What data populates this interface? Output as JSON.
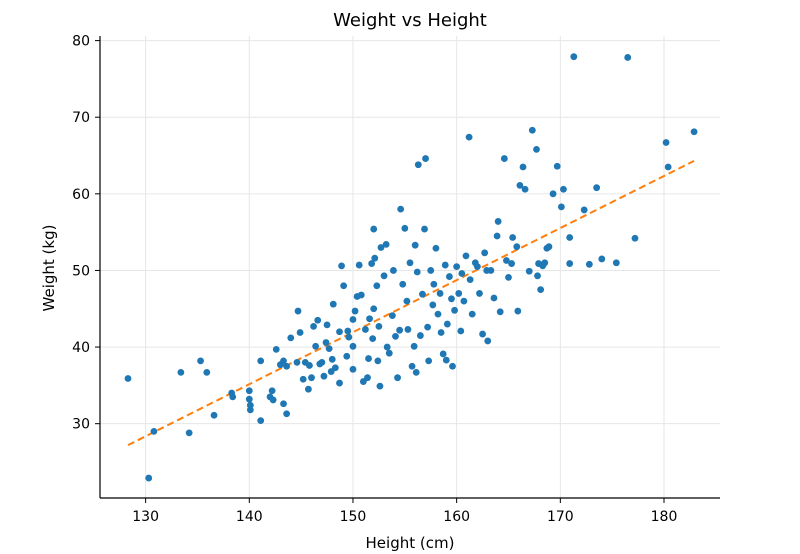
{
  "chart_data": {
    "type": "scatter",
    "title": "Weight vs Height",
    "xlabel": "Height (cm)",
    "ylabel": "Weight (kg)",
    "xlim": [
      125.6,
      185.4
    ],
    "ylim": [
      20.3,
      80.6
    ],
    "xticks": [
      130,
      140,
      150,
      160,
      170,
      180
    ],
    "yticks": [
      30,
      40,
      50,
      60,
      70,
      80
    ],
    "grid": true,
    "colors": {
      "points": "#1f77b4",
      "trend": "#ff7f0e"
    },
    "trend_line": {
      "x": [
        128.3,
        182.9
      ],
      "y": [
        27.2,
        64.3
      ],
      "style": "dashed"
    },
    "series": [
      {
        "points": [
          [
            128.3,
            35.9
          ],
          [
            130.3,
            22.9
          ],
          [
            130.8,
            29.0
          ],
          [
            133.4,
            36.7
          ],
          [
            134.2,
            28.8
          ],
          [
            135.3,
            38.2
          ],
          [
            135.9,
            36.7
          ],
          [
            136.6,
            31.1
          ],
          [
            138.3,
            34.0
          ],
          [
            138.4,
            33.5
          ],
          [
            140.0,
            34.3
          ],
          [
            140.0,
            33.2
          ],
          [
            140.1,
            32.4
          ],
          [
            140.1,
            31.8
          ],
          [
            141.1,
            30.4
          ],
          [
            141.1,
            38.2
          ],
          [
            142.0,
            33.5
          ],
          [
            142.2,
            34.3
          ],
          [
            142.3,
            33.1
          ],
          [
            142.6,
            39.7
          ],
          [
            143.0,
            37.7
          ],
          [
            143.3,
            38.2
          ],
          [
            143.3,
            32.6
          ],
          [
            143.6,
            31.3
          ],
          [
            143.6,
            37.5
          ],
          [
            144.0,
            41.2
          ],
          [
            144.6,
            38.0
          ],
          [
            144.7,
            44.7
          ],
          [
            144.9,
            41.9
          ],
          [
            145.4,
            38.0
          ],
          [
            145.7,
            34.5
          ],
          [
            145.8,
            37.6
          ],
          [
            146.0,
            36.0
          ],
          [
            146.2,
            42.7
          ],
          [
            146.4,
            40.1
          ],
          [
            146.6,
            43.5
          ],
          [
            146.8,
            37.8
          ],
          [
            147.0,
            38.0
          ],
          [
            147.2,
            36.2
          ],
          [
            147.4,
            40.6
          ],
          [
            147.5,
            42.9
          ],
          [
            147.9,
            36.8
          ],
          [
            148.0,
            38.4
          ],
          [
            148.1,
            45.6
          ],
          [
            148.3,
            37.3
          ],
          [
            148.7,
            35.3
          ],
          [
            148.7,
            42.0
          ],
          [
            148.9,
            50.6
          ],
          [
            149.1,
            48.0
          ],
          [
            149.4,
            38.8
          ],
          [
            149.5,
            42.1
          ],
          [
            149.6,
            41.3
          ],
          [
            150.0,
            37.1
          ],
          [
            150.0,
            40.1
          ],
          [
            150.0,
            43.6
          ],
          [
            150.2,
            44.7
          ],
          [
            150.4,
            46.6
          ],
          [
            150.6,
            50.7
          ],
          [
            150.8,
            46.8
          ],
          [
            151.0,
            35.5
          ],
          [
            151.2,
            42.3
          ],
          [
            151.4,
            36.0
          ],
          [
            151.5,
            38.5
          ],
          [
            151.6,
            43.7
          ],
          [
            151.8,
            50.9
          ],
          [
            151.9,
            41.1
          ],
          [
            152.0,
            45.0
          ],
          [
            152.1,
            51.6
          ],
          [
            152.3,
            48.0
          ],
          [
            152.4,
            38.2
          ],
          [
            152.5,
            42.7
          ],
          [
            152.6,
            34.9
          ],
          [
            152.7,
            53.0
          ],
          [
            153.0,
            49.3
          ],
          [
            153.2,
            53.4
          ],
          [
            153.3,
            40.0
          ],
          [
            153.5,
            39.2
          ],
          [
            153.8,
            44.1
          ],
          [
            153.9,
            50.0
          ],
          [
            154.1,
            41.4
          ],
          [
            154.3,
            36.0
          ],
          [
            154.5,
            42.2
          ],
          [
            154.6,
            58.0
          ],
          [
            154.8,
            48.2
          ],
          [
            155.0,
            55.5
          ],
          [
            155.2,
            46.0
          ],
          [
            155.3,
            42.3
          ],
          [
            155.5,
            51.0
          ],
          [
            155.7,
            37.5
          ],
          [
            155.9,
            40.1
          ],
          [
            156.0,
            53.3
          ],
          [
            156.2,
            49.8
          ],
          [
            156.3,
            63.8
          ],
          [
            156.5,
            41.5
          ],
          [
            156.7,
            46.9
          ],
          [
            156.9,
            55.4
          ],
          [
            157.0,
            64.6
          ],
          [
            157.2,
            42.6
          ],
          [
            157.3,
            38.2
          ],
          [
            157.5,
            50.0
          ],
          [
            157.7,
            45.5
          ],
          [
            157.8,
            48.2
          ],
          [
            158.0,
            52.9
          ],
          [
            158.2,
            44.3
          ],
          [
            158.4,
            47.0
          ],
          [
            158.5,
            41.9
          ],
          [
            158.7,
            39.1
          ],
          [
            158.9,
            50.7
          ],
          [
            159.1,
            43.0
          ],
          [
            159.3,
            49.2
          ],
          [
            159.5,
            46.3
          ],
          [
            159.6,
            37.5
          ],
          [
            159.8,
            44.8
          ],
          [
            160.0,
            50.5
          ],
          [
            160.2,
            47.0
          ],
          [
            160.4,
            42.1
          ],
          [
            160.5,
            49.6
          ],
          [
            160.7,
            46.0
          ],
          [
            160.9,
            51.9
          ],
          [
            161.2,
            67.4
          ],
          [
            161.3,
            48.8
          ],
          [
            161.5,
            44.3
          ],
          [
            161.8,
            51.0
          ],
          [
            162.0,
            50.5
          ],
          [
            162.2,
            47.0
          ],
          [
            162.5,
            41.7
          ],
          [
            162.7,
            52.3
          ],
          [
            163.0,
            40.8
          ],
          [
            163.3,
            50.0
          ],
          [
            163.6,
            46.4
          ],
          [
            163.9,
            54.5
          ],
          [
            164.0,
            56.4
          ],
          [
            164.2,
            44.6
          ],
          [
            164.6,
            64.6
          ],
          [
            164.8,
            51.3
          ],
          [
            165.0,
            49.1
          ],
          [
            165.3,
            50.9
          ],
          [
            165.4,
            54.3
          ],
          [
            165.8,
            53.1
          ],
          [
            166.1,
            61.1
          ],
          [
            166.4,
            63.5
          ],
          [
            166.6,
            60.6
          ],
          [
            167.0,
            49.9
          ],
          [
            167.3,
            68.3
          ],
          [
            167.7,
            65.8
          ],
          [
            167.9,
            50.9
          ],
          [
            168.1,
            47.5
          ],
          [
            168.3,
            50.6
          ],
          [
            168.5,
            51.0
          ],
          [
            168.7,
            52.9
          ],
          [
            168.9,
            53.1
          ],
          [
            169.3,
            60.0
          ],
          [
            169.7,
            63.6
          ],
          [
            170.1,
            58.3
          ],
          [
            170.3,
            60.6
          ],
          [
            170.9,
            50.9
          ],
          [
            170.9,
            54.3
          ],
          [
            171.3,
            77.9
          ],
          [
            172.3,
            57.9
          ],
          [
            172.8,
            50.8
          ],
          [
            173.5,
            60.8
          ],
          [
            174.0,
            51.5
          ],
          [
            175.4,
            51.0
          ],
          [
            176.5,
            77.8
          ],
          [
            177.2,
            54.2
          ],
          [
            180.2,
            66.7
          ],
          [
            180.4,
            63.5
          ],
          [
            182.9,
            68.1
          ],
          [
            165.9,
            44.7
          ],
          [
            167.8,
            49.3
          ],
          [
            145.2,
            35.8
          ],
          [
            147.7,
            39.8
          ],
          [
            152.0,
            55.4
          ],
          [
            156.1,
            36.7
          ],
          [
            159.0,
            38.3
          ],
          [
            162.9,
            50.0
          ]
        ]
      }
    ]
  }
}
